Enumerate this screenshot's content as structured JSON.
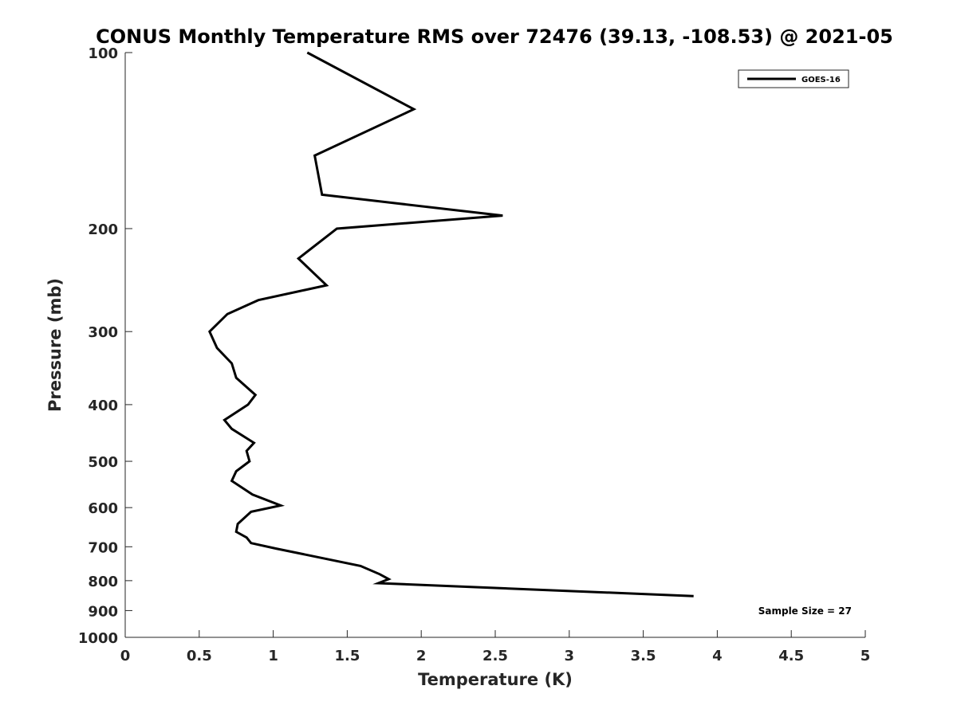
{
  "chart_data": {
    "type": "line",
    "title": "CONUS Monthly Temperature RMS over 72476 (39.13, -108.53) @ 2021-05",
    "xlabel": "Temperature (K)",
    "ylabel": "Pressure (mb)",
    "xlim": [
      0,
      5
    ],
    "ylim": [
      1000,
      100
    ],
    "y_scale": "log",
    "y_reversed": true,
    "grid": false,
    "legend_position": "top-right",
    "x_ticks": [
      "0",
      "0.5",
      "1",
      "1.5",
      "2",
      "2.5",
      "3",
      "3.5",
      "4",
      "4.5",
      "5"
    ],
    "x_tick_values": [
      0,
      0.5,
      1,
      1.5,
      2,
      2.5,
      3,
      3.5,
      4,
      4.5,
      5
    ],
    "y_ticks": [
      "100",
      "200",
      "300",
      "400",
      "500",
      "600",
      "700",
      "800",
      "900",
      "1000"
    ],
    "y_tick_values": [
      100,
      200,
      300,
      400,
      500,
      600,
      700,
      800,
      900,
      1000
    ],
    "series": [
      {
        "name": "GOES-16",
        "color": "#000000",
        "points": [
          {
            "x": 1.23,
            "y": 100
          },
          {
            "x": 1.95,
            "y": 125
          },
          {
            "x": 1.28,
            "y": 150
          },
          {
            "x": 1.33,
            "y": 175
          },
          {
            "x": 2.55,
            "y": 190
          },
          {
            "x": 1.43,
            "y": 200
          },
          {
            "x": 1.17,
            "y": 225
          },
          {
            "x": 1.36,
            "y": 250
          },
          {
            "x": 0.9,
            "y": 265
          },
          {
            "x": 0.69,
            "y": 280
          },
          {
            "x": 0.57,
            "y": 300
          },
          {
            "x": 0.62,
            "y": 320
          },
          {
            "x": 0.72,
            "y": 340
          },
          {
            "x": 0.75,
            "y": 360
          },
          {
            "x": 0.88,
            "y": 385
          },
          {
            "x": 0.83,
            "y": 400
          },
          {
            "x": 0.67,
            "y": 425
          },
          {
            "x": 0.72,
            "y": 440
          },
          {
            "x": 0.87,
            "y": 465
          },
          {
            "x": 0.82,
            "y": 480
          },
          {
            "x": 0.84,
            "y": 500
          },
          {
            "x": 0.75,
            "y": 520
          },
          {
            "x": 0.72,
            "y": 540
          },
          {
            "x": 0.86,
            "y": 570
          },
          {
            "x": 1.05,
            "y": 595
          },
          {
            "x": 0.85,
            "y": 610
          },
          {
            "x": 0.76,
            "y": 640
          },
          {
            "x": 0.75,
            "y": 660
          },
          {
            "x": 0.82,
            "y": 675
          },
          {
            "x": 0.85,
            "y": 690
          },
          {
            "x": 1.02,
            "y": 705
          },
          {
            "x": 1.59,
            "y": 755
          },
          {
            "x": 1.72,
            "y": 780
          },
          {
            "x": 1.78,
            "y": 795
          },
          {
            "x": 1.71,
            "y": 808
          },
          {
            "x": 3.84,
            "y": 850
          }
        ]
      }
    ],
    "annotation": "Sample Size = 27"
  }
}
